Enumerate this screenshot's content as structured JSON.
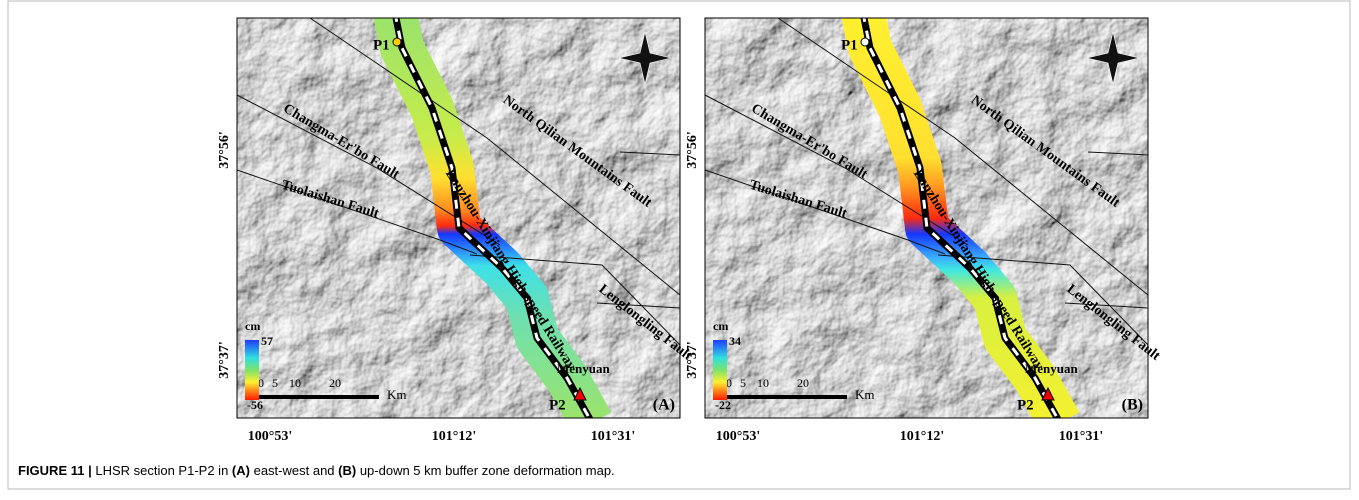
{
  "panels": [
    {
      "label": "(A)",
      "legend": {
        "unit": "cm",
        "max": 57,
        "min": -56
      }
    },
    {
      "label": "(B)",
      "legend": {
        "unit": "cm",
        "max": 34,
        "min": -22
      }
    }
  ],
  "map_labels": {
    "p1": "P1",
    "p2": "P2",
    "town": "Menyuan",
    "faults": [
      "North Qilian Mountains Fault",
      "Changma-Er'bo Fault",
      "Tuolaishan Fault",
      "Lenglongling Fault"
    ],
    "railway": "Lanzhou-Xinjiang High-speed Railway",
    "scale": {
      "ticks": [
        "0",
        "5",
        "10",
        "20"
      ],
      "unit": "Km"
    }
  },
  "axes": {
    "x": [
      "100°53'",
      "101°12'",
      "101°31'"
    ],
    "y": [
      "37°56'",
      "37°37'"
    ]
  },
  "caption": {
    "label": "FIGURE 11 |",
    "parts": [
      "LHSR section P1-P2 in",
      "(A)",
      "east-west and",
      "(B)",
      "up-down 5 km buffer zone deformation map."
    ]
  }
}
